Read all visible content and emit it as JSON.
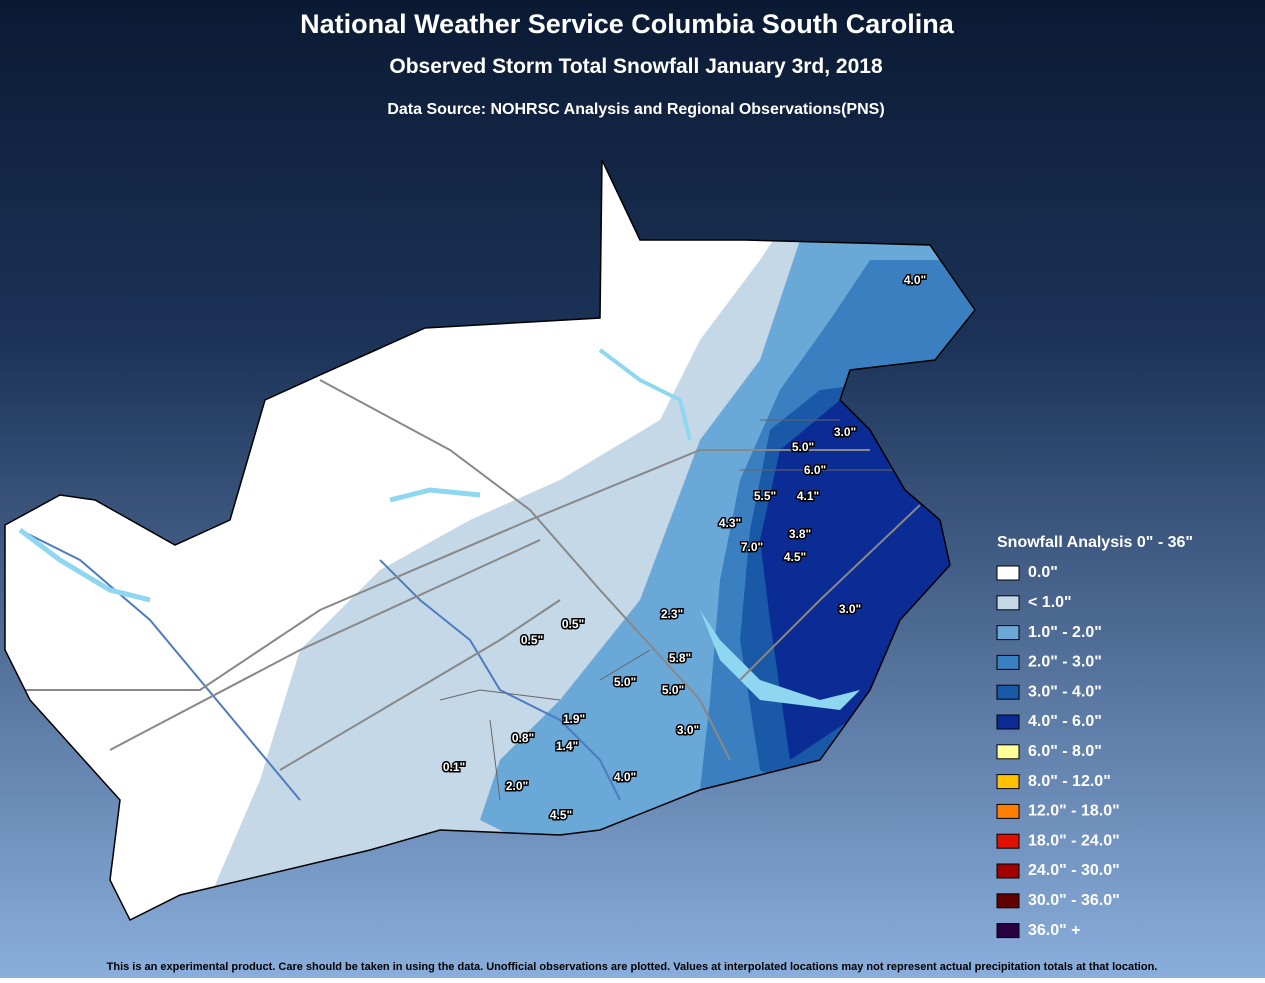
{
  "header": {
    "title": "National Weather Service Columbia South Carolina",
    "subtitle": "Observed Storm Total Snowfall January 3rd, 2018",
    "source": "Data Source: NOHRSC Analysis and Regional Observations(PNS)"
  },
  "observations": [
    "4.0\"",
    "3.0\"",
    "5.0\"",
    "6.0\"",
    "5.5\"",
    "4.1\"",
    "4.3\"",
    "3.8\"",
    "7.0\"",
    "4.5\"",
    "3.0\"",
    "2.3\"",
    "0.5\"",
    "0.5\"",
    "5.8\"",
    "5.0\"",
    "5.0\"",
    "1.9\"",
    "3.0\"",
    "0.8\"",
    "1.4\"",
    "0.1\"",
    "4.0\"",
    "2.0\"",
    "4.5\""
  ],
  "legend": {
    "title": "Snowfall Analysis 0\" - 36\"",
    "items": [
      {
        "label": "0.0\"",
        "color": "#ffffff"
      },
      {
        "label": "< 1.0\"",
        "color": "#c4d8e8"
      },
      {
        "label": "1.0\" - 2.0\"",
        "color": "#6aa8d8"
      },
      {
        "label": "2.0\" - 3.0\"",
        "color": "#3a80c0"
      },
      {
        "label": "3.0\" - 4.0\"",
        "color": "#1a58a8"
      },
      {
        "label": "4.0\" - 6.0\"",
        "color": "#0a2c94"
      },
      {
        "label": "6.0\" - 8.0\"",
        "color": "#ffff99"
      },
      {
        "label": "8.0\" - 12.0\"",
        "color": "#ffc000"
      },
      {
        "label": "12.0\" - 18.0\"",
        "color": "#ff8000"
      },
      {
        "label": "18.0\" - 24.0\"",
        "color": "#e01000"
      },
      {
        "label": "24.0\" - 30.0\"",
        "color": "#a00000"
      },
      {
        "label": "30.0\" - 36.0\"",
        "color": "#600000"
      },
      {
        "label": "36.0\" +",
        "color": "#280040"
      }
    ]
  },
  "footer": "This is an experimental product. Care should be taken in using the data. Unofficial observations are plotted. Values at interpolated locations may not represent actual precipitation totals at that location."
}
